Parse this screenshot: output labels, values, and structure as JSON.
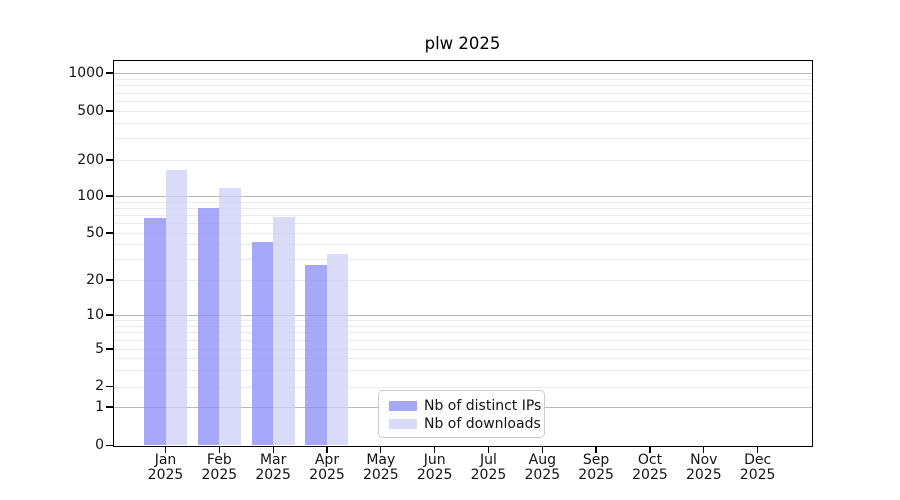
{
  "title": "plw 2025",
  "y_axis": {
    "tick_labels": [
      "1000",
      "500",
      "200",
      "100",
      "50",
      "20",
      "10",
      "5",
      "2",
      "1",
      "0"
    ]
  },
  "x_axis": {
    "months": [
      "Jan",
      "Feb",
      "Mar",
      "Apr",
      "May",
      "Jun",
      "Jul",
      "Aug",
      "Sep",
      "Oct",
      "Nov",
      "Dec"
    ],
    "year": "2025"
  },
  "legend": {
    "items": [
      {
        "label": "Nb of distinct IPs",
        "color": "rgba(143,143,250,0.78)"
      },
      {
        "label": "Nb of downloads",
        "color": "rgba(208,208,247,0.78)"
      }
    ]
  },
  "chart_data": {
    "type": "bar",
    "title": "plw 2025",
    "categories": [
      "Jan 2025",
      "Feb 2025",
      "Mar 2025",
      "Apr 2025",
      "May 2025",
      "Jun 2025",
      "Jul 2025",
      "Aug 2025",
      "Sep 2025",
      "Oct 2025",
      "Nov 2025",
      "Dec 2025"
    ],
    "series": [
      {
        "name": "Nb of distinct IPs",
        "color": "rgba(143,143,250,0.78)",
        "values": [
          66,
          80,
          42,
          27,
          0,
          0,
          0,
          0,
          0,
          0,
          0,
          0
        ]
      },
      {
        "name": "Nb of downloads",
        "color": "rgba(208,208,247,0.78)",
        "values": [
          165,
          117,
          68,
          33,
          0,
          0,
          0,
          0,
          0,
          0,
          0,
          0
        ]
      }
    ],
    "y_scale": "symlog",
    "y_ticks": [
      0,
      1,
      2,
      5,
      10,
      20,
      50,
      100,
      200,
      500,
      1000
    ],
    "ylim": [
      0,
      1000
    ],
    "grid": "horizontal major gridlines at 1,10,100,1000 and minor log gridlines, drawn beneath semi-transparent bars",
    "legend_position": "lower center",
    "xlabel": "",
    "ylabel": ""
  }
}
